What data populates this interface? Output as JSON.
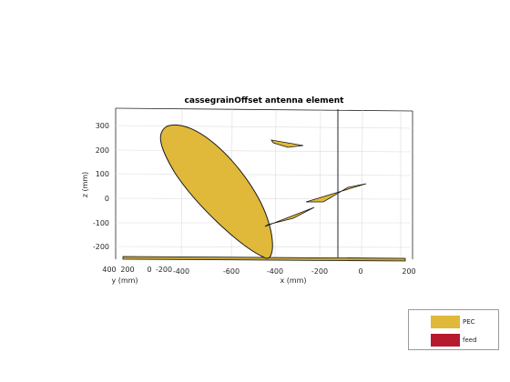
{
  "title": "cassegrainOffset antenna element",
  "axes": {
    "ylabel_left": "z (mm)",
    "xlabel": "x (mm)",
    "ylabel_bottom": "y (mm)",
    "z_ticks": [
      "300",
      "200",
      "100",
      "0",
      "-100",
      "-200"
    ],
    "x_ticks": [
      "-400",
      "-600",
      "-400",
      "-200",
      "0",
      "200"
    ],
    "y_ticks": [
      "400",
      "200",
      "0",
      "-200"
    ]
  },
  "legend": [
    {
      "label": "PEC",
      "color": "#e0b83a"
    },
    {
      "label": "feed",
      "color": "#b7192f"
    }
  ],
  "colors": {
    "pec": "#e0b83a",
    "grid": "#d8d8d8",
    "axis": "#262626"
  }
}
